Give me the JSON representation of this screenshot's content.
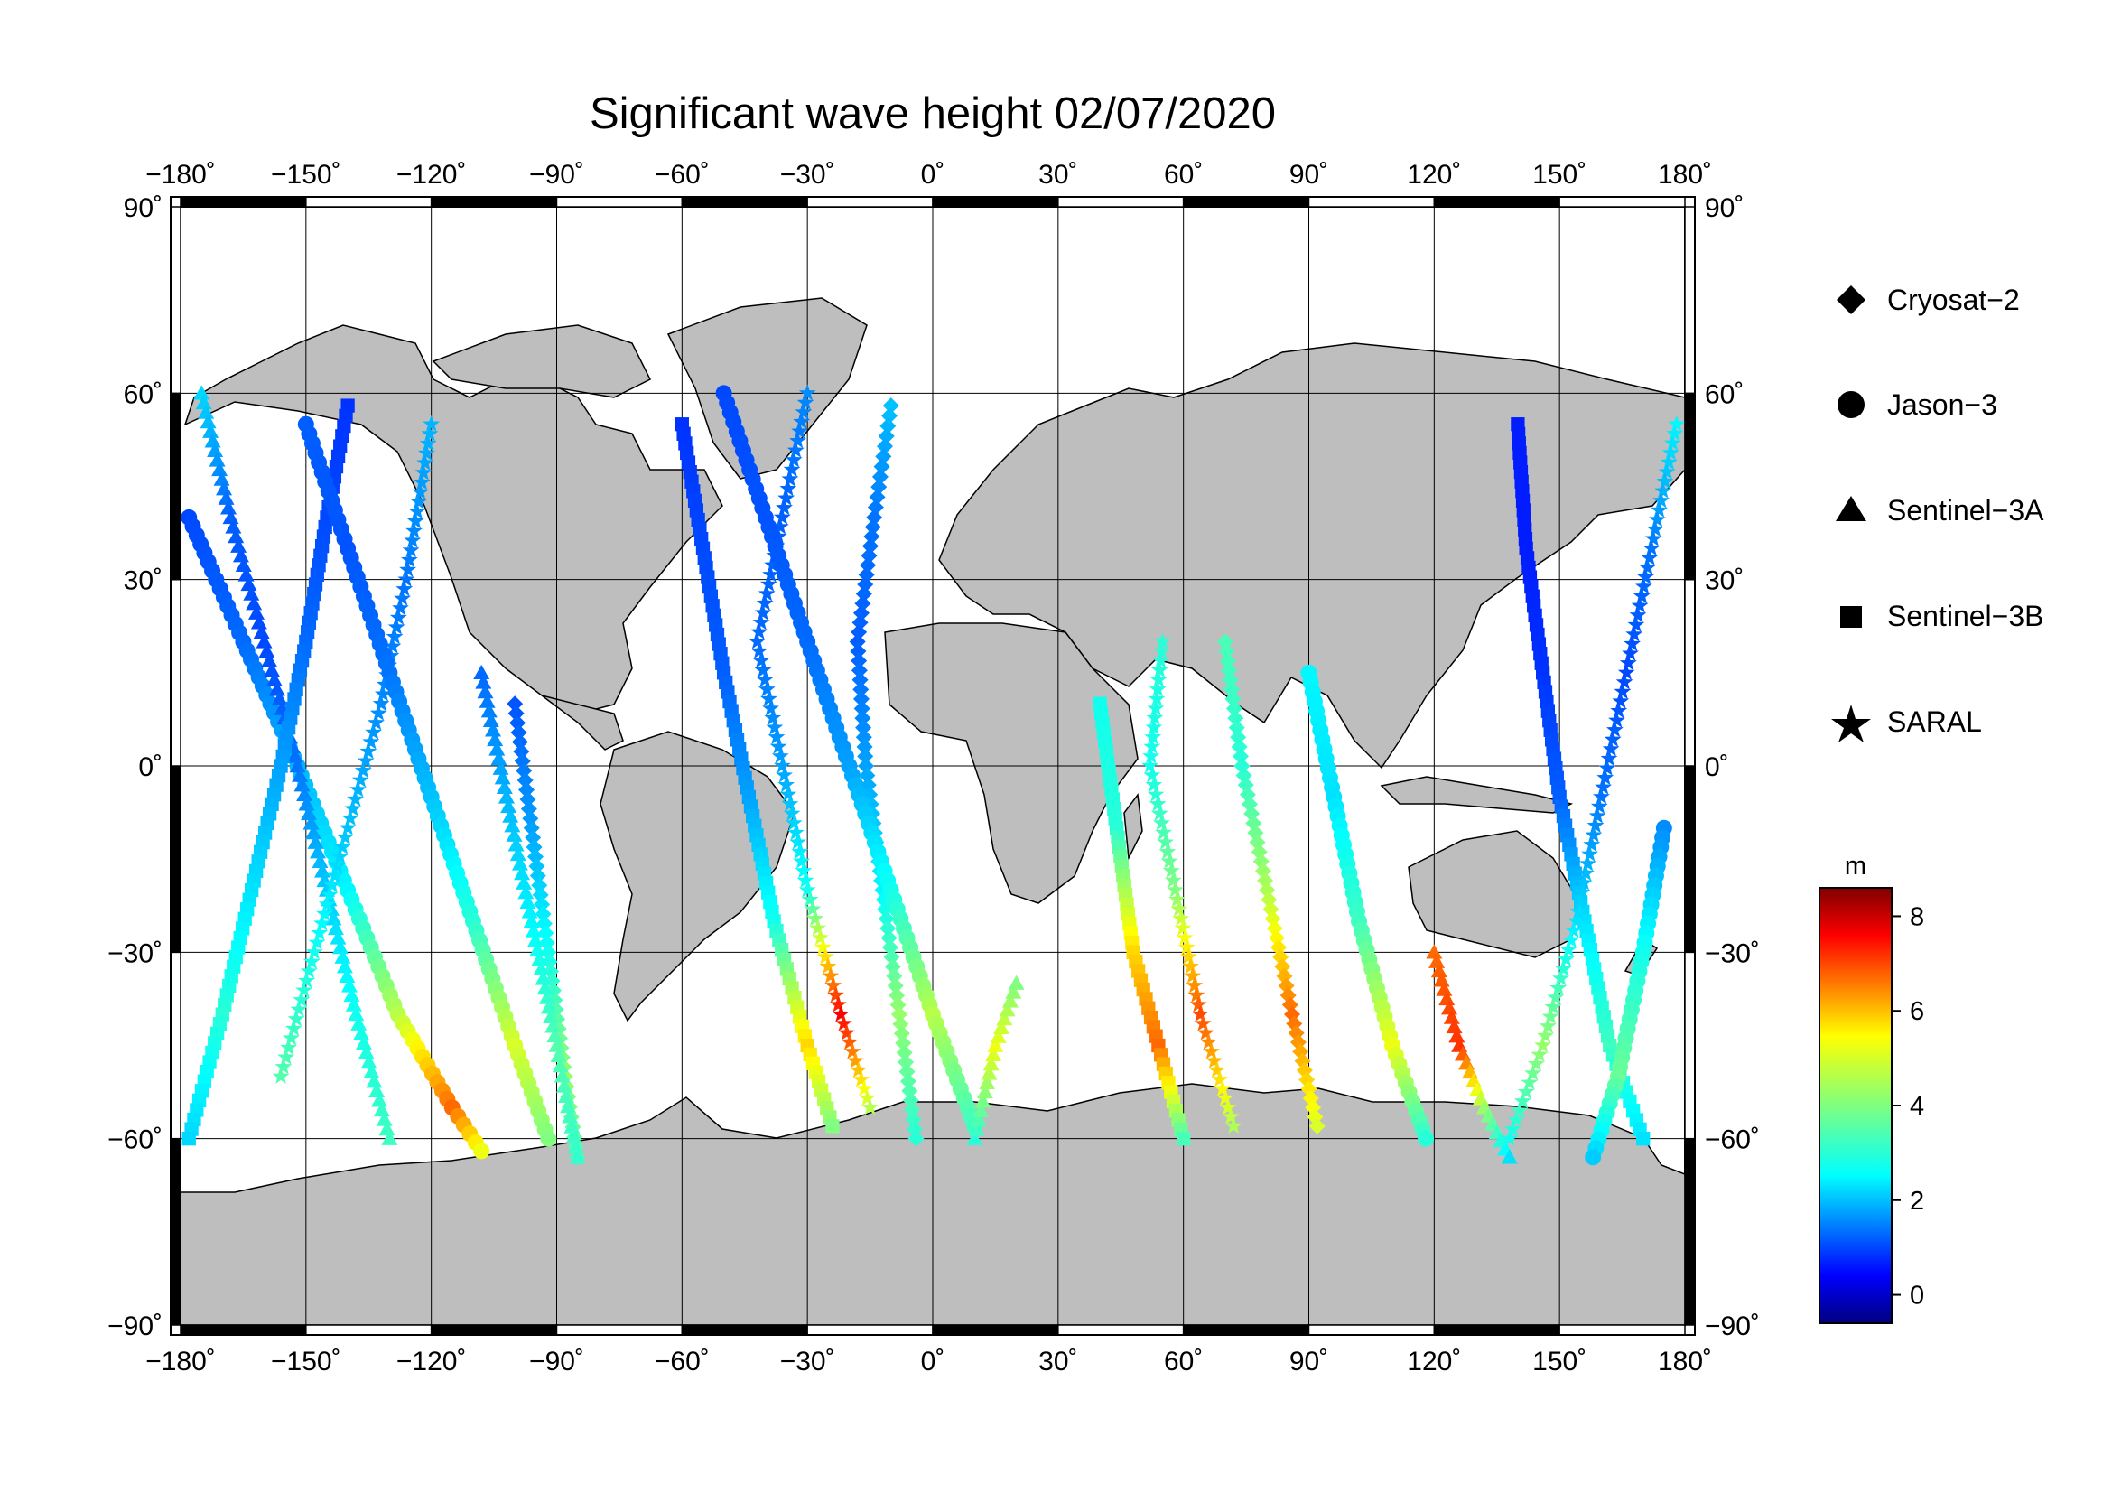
{
  "title": "Significant wave height 02/07/2020",
  "map": {
    "projection": "equirectangular",
    "lon_range": [
      -180,
      180
    ],
    "lat_range": [
      -90,
      90
    ],
    "lon_ticks": [
      -180,
      -150,
      -120,
      -90,
      -60,
      -30,
      0,
      30,
      60,
      90,
      120,
      150,
      180
    ],
    "lat_ticks": [
      -90,
      -60,
      -30,
      0,
      30,
      60,
      90
    ],
    "lon_tick_labels": [
      "−180˚",
      "−150˚",
      "−120˚",
      "−90˚",
      "−60˚",
      "−30˚",
      "0˚",
      "30˚",
      "60˚",
      "90˚",
      "120˚",
      "150˚",
      "180˚"
    ],
    "lat_tick_labels": [
      "−90˚",
      "−60˚",
      "−30˚",
      "0˚",
      "30˚",
      "60˚",
      "90˚"
    ],
    "grid": true,
    "land_color": "#bebebe",
    "ocean_color": "#ffffff",
    "frame": "alternating black/white border ticks every 30 degrees"
  },
  "legend": {
    "placement": "right",
    "items": [
      {
        "label": "Cryosat−2",
        "marker": "diamond"
      },
      {
        "label": "Jason−3",
        "marker": "circle"
      },
      {
        "label": "Sentinel−3A",
        "marker": "triangle"
      },
      {
        "label": "Sentinel−3B",
        "marker": "square"
      },
      {
        "label": "SARAL",
        "marker": "star"
      }
    ]
  },
  "colorbar": {
    "unit": "m",
    "range": [
      -0.6,
      8.6
    ],
    "tick_values": [
      0,
      2,
      4,
      6,
      8
    ],
    "tick_labels": [
      "0",
      "2",
      "4",
      "6",
      "8"
    ],
    "colormap": "jet"
  },
  "chart_data": {
    "type": "scatter",
    "title": "Significant wave height 02/07/2020",
    "xlabel": "",
    "ylabel": "",
    "xlim": [
      -180,
      180
    ],
    "ylim": [
      -90,
      90
    ],
    "color_variable": "significant wave height (m)",
    "series": [
      {
        "name": "Cryosat−2",
        "marker": "diamond"
      },
      {
        "name": "Jason−3",
        "marker": "circle"
      },
      {
        "name": "Sentinel−3A",
        "marker": "triangle"
      },
      {
        "name": "Sentinel−3B",
        "marker": "square"
      },
      {
        "name": "SARAL",
        "marker": "star"
      }
    ],
    "tracks": [
      {
        "series": "Jason−3",
        "points": [
          [
            -178,
            40,
            1.2
          ],
          [
            -165,
            20,
            1.5
          ],
          [
            -152,
            0,
            2.2
          ],
          [
            -140,
            -20,
            2.8
          ],
          [
            -128,
            -40,
            4.5
          ],
          [
            -115,
            -55,
            6.5
          ],
          [
            -108,
            -62,
            5.0
          ]
        ]
      },
      {
        "series": "Sentinel−3A",
        "points": [
          [
            -175,
            60,
            2.5
          ],
          [
            -168,
            40,
            1.4
          ],
          [
            -160,
            20,
            1.2
          ],
          [
            -152,
            0,
            1.6
          ],
          [
            -145,
            -20,
            2.4
          ],
          [
            -138,
            -40,
            3.0
          ],
          [
            -130,
            -60,
            3.4
          ]
        ]
      },
      {
        "series": "Sentinel−3B",
        "points": [
          [
            -140,
            58,
            1.0
          ],
          [
            -145,
            40,
            1.2
          ],
          [
            -150,
            20,
            1.5
          ],
          [
            -156,
            0,
            2.0
          ],
          [
            -163,
            -20,
            2.6
          ],
          [
            -170,
            -40,
            3.2
          ],
          [
            -178,
            -60,
            2.5
          ]
        ]
      },
      {
        "series": "SARAL",
        "points": [
          [
            -120,
            55,
            2.2
          ],
          [
            -126,
            30,
            1.6
          ],
          [
            -132,
            10,
            1.8
          ],
          [
            -140,
            -10,
            2.3
          ],
          [
            -148,
            -30,
            3.0
          ],
          [
            -156,
            -50,
            3.6
          ]
        ]
      },
      {
        "series": "Cryosat−2",
        "points": [
          [
            -100,
            10,
            1.3
          ],
          [
            -96,
            -10,
            2.0
          ],
          [
            -92,
            -30,
            3.0
          ],
          [
            -88,
            -50,
            4.2
          ],
          [
            -85,
            -63,
            3.5
          ]
        ]
      },
      {
        "series": "Jason−3",
        "points": [
          [
            -150,
            55,
            1.4
          ],
          [
            -140,
            35,
            1.3
          ],
          [
            -130,
            15,
            1.6
          ],
          [
            -120,
            -5,
            2.3
          ],
          [
            -110,
            -25,
            3.2
          ],
          [
            -100,
            -45,
            4.8
          ],
          [
            -92,
            -60,
            4.0
          ]
        ]
      },
      {
        "series": "Sentinel−3A",
        "points": [
          [
            -85,
            -63,
            3.3
          ],
          [
            -90,
            -45,
            3.6
          ],
          [
            -96,
            -25,
            2.8
          ],
          [
            -102,
            -5,
            2.2
          ],
          [
            -108,
            15,
            1.5
          ]
        ]
      },
      {
        "series": "Sentinel−3B",
        "points": [
          [
            -60,
            55,
            1.0
          ],
          [
            -55,
            35,
            1.2
          ],
          [
            -50,
            15,
            1.4
          ],
          [
            -44,
            -5,
            2.0
          ],
          [
            -38,
            -25,
            3.0
          ],
          [
            -30,
            -45,
            5.5
          ],
          [
            -24,
            -58,
            4.0
          ]
        ]
      },
      {
        "series": "SARAL",
        "points": [
          [
            -30,
            60,
            1.8
          ],
          [
            -36,
            40,
            1.4
          ],
          [
            -42,
            20,
            1.5
          ],
          [
            -36,
            0,
            2.0
          ],
          [
            -30,
            -20,
            3.0
          ],
          [
            -22,
            -40,
            7.5
          ],
          [
            -15,
            -55,
            4.5
          ]
        ]
      },
      {
        "series": "Cryosat−2",
        "points": [
          [
            -10,
            58,
            2.3
          ],
          [
            -14,
            40,
            1.6
          ],
          [
            -18,
            20,
            1.4
          ],
          [
            -16,
            0,
            2.0
          ],
          [
            -12,
            -20,
            2.8
          ],
          [
            -8,
            -40,
            4.2
          ],
          [
            -4,
            -60,
            3.2
          ]
        ]
      },
      {
        "series": "Jason−3",
        "points": [
          [
            -50,
            60,
            1.2
          ],
          [
            -40,
            40,
            1.3
          ],
          [
            -30,
            20,
            1.5
          ],
          [
            -20,
            0,
            2.0
          ],
          [
            -10,
            -20,
            3.0
          ],
          [
            0,
            -40,
            4.5
          ],
          [
            10,
            -58,
            3.4
          ]
        ]
      },
      {
        "series": "Sentinel−3A",
        "points": [
          [
            10,
            -60,
            3.2
          ],
          [
            15,
            -45,
            5.0
          ],
          [
            20,
            -35,
            4.0
          ]
        ]
      },
      {
        "series": "Sentinel−3B",
        "points": [
          [
            40,
            10,
            3.0
          ],
          [
            44,
            -10,
            3.2
          ],
          [
            48,
            -30,
            5.5
          ],
          [
            54,
            -45,
            6.5
          ],
          [
            60,
            -60,
            3.5
          ]
        ]
      },
      {
        "series": "SARAL",
        "points": [
          [
            55,
            20,
            3.2
          ],
          [
            52,
            0,
            3.0
          ],
          [
            58,
            -20,
            4.0
          ],
          [
            64,
            -40,
            6.8
          ],
          [
            72,
            -58,
            4.4
          ]
        ]
      },
      {
        "series": "Cryosat−2",
        "points": [
          [
            70,
            20,
            3.5
          ],
          [
            74,
            0,
            3.2
          ],
          [
            80,
            -20,
            4.4
          ],
          [
            86,
            -40,
            6.5
          ],
          [
            92,
            -58,
            4.8
          ]
        ]
      },
      {
        "series": "Jason−3",
        "points": [
          [
            90,
            15,
            2.8
          ],
          [
            96,
            -5,
            2.6
          ],
          [
            102,
            -25,
            3.4
          ],
          [
            110,
            -45,
            5.0
          ],
          [
            118,
            -60,
            3.2
          ]
        ]
      },
      {
        "series": "Sentinel−3A",
        "points": [
          [
            120,
            -30,
            6.5
          ],
          [
            126,
            -45,
            7.0
          ],
          [
            132,
            -55,
            4.2
          ],
          [
            138,
            -63,
            2.6
          ]
        ]
      },
      {
        "series": "Sentinel−3B",
        "points": [
          [
            140,
            55,
            0.8
          ],
          [
            142,
            35,
            0.8
          ],
          [
            146,
            15,
            1.0
          ],
          [
            150,
            -5,
            1.4
          ],
          [
            156,
            -25,
            2.6
          ],
          [
            162,
            -45,
            3.4
          ],
          [
            170,
            -60,
            2.6
          ]
        ]
      },
      {
        "series": "SARAL",
        "points": [
          [
            178,
            55,
            2.8
          ],
          [
            172,
            35,
            1.6
          ],
          [
            166,
            15,
            1.2
          ],
          [
            160,
            -5,
            1.6
          ],
          [
            154,
            -25,
            2.6
          ],
          [
            146,
            -45,
            4.2
          ],
          [
            138,
            -60,
            3.0
          ]
        ]
      },
      {
        "series": "Jason−3",
        "points": [
          [
            175,
            -10,
            1.8
          ],
          [
            170,
            -30,
            3.0
          ],
          [
            164,
            -50,
            3.8
          ],
          [
            158,
            -63,
            2.4
          ]
        ]
      }
    ]
  }
}
